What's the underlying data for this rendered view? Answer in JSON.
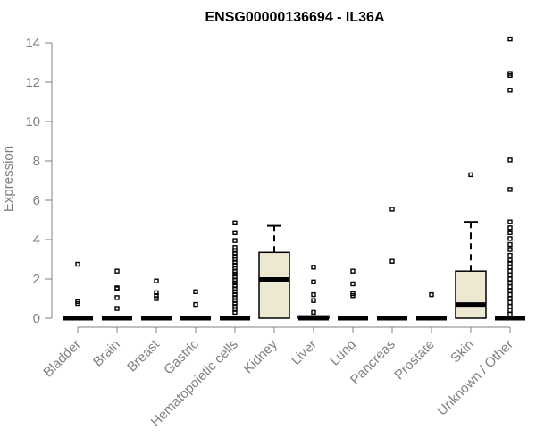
{
  "chart_data": {
    "type": "boxplot",
    "title": "ENSG00000136694 - IL36A",
    "xlabel": "",
    "ylabel": "Expression",
    "ylim": [
      0,
      14.4
    ],
    "yticks": [
      0,
      2,
      4,
      6,
      8,
      10,
      12,
      14
    ],
    "ytick_labels": [
      "0",
      "2",
      "4",
      "6",
      "8",
      "10",
      "12",
      "14"
    ],
    "grid": false,
    "box_fill": "#ede8d1",
    "box_stroke": "#000000",
    "categories": [
      "Bladder",
      "Brain",
      "Breast",
      "Gastric",
      "Hematopoietic cells",
      "Kidney",
      "Liver",
      "Lung",
      "Pancreas",
      "Prostate",
      "Skin",
      "Unknown / Other"
    ],
    "boxes": [
      {
        "q1": 0,
        "median": 0,
        "q3": 0,
        "whisker_low": 0,
        "whisker_high": 0,
        "outliers": [
          2.75,
          0.85,
          0.75
        ]
      },
      {
        "q1": 0,
        "median": 0,
        "q3": 0,
        "whisker_low": 0,
        "whisker_high": 0,
        "outliers": [
          2.4,
          1.55,
          1.5,
          1.05,
          0.5
        ]
      },
      {
        "q1": 0,
        "median": 0,
        "q3": 0,
        "whisker_low": 0,
        "whisker_high": 0,
        "outliers": [
          1.9,
          1.3,
          1.15,
          1.0
        ]
      },
      {
        "q1": 0,
        "median": 0,
        "q3": 0,
        "whisker_low": 0,
        "whisker_high": 0,
        "outliers": [
          1.35,
          0.7
        ]
      },
      {
        "q1": 0,
        "median": 0,
        "q3": 0,
        "whisker_low": 0,
        "whisker_high": 0,
        "outliers": [
          4.85,
          4.35,
          3.95,
          3.6,
          3.45,
          3.3,
          3.15,
          3.0,
          2.85,
          2.7,
          2.55,
          2.4,
          2.25,
          2.1,
          1.95,
          1.8,
          1.65,
          1.5,
          1.35,
          1.2,
          1.05,
          0.9,
          0.75,
          0.6,
          0.45,
          0.3
        ]
      },
      {
        "q1": 0,
        "median": 1.98,
        "q3": 3.35,
        "whisker_low": 0,
        "whisker_high": 4.7,
        "outliers": []
      },
      {
        "q1": 0,
        "median": 0,
        "q3": 0.12,
        "whisker_low": 0,
        "whisker_high": 0.12,
        "outliers": [
          2.6,
          1.85,
          1.2,
          0.9,
          0.3
        ]
      },
      {
        "q1": 0,
        "median": 0,
        "q3": 0,
        "whisker_low": 0,
        "whisker_high": 0,
        "outliers": [
          2.4,
          1.75,
          1.25,
          1.15
        ]
      },
      {
        "q1": 0,
        "median": 0,
        "q3": 0,
        "whisker_low": 0,
        "whisker_high": 0,
        "outliers": [
          5.55,
          2.9
        ]
      },
      {
        "q1": 0,
        "median": 0,
        "q3": 0,
        "whisker_low": 0,
        "whisker_high": 0,
        "outliers": [
          1.2
        ]
      },
      {
        "q1": 0,
        "median": 0.7,
        "q3": 2.4,
        "whisker_low": 0,
        "whisker_high": 4.9,
        "outliers": [
          7.3
        ]
      },
      {
        "q1": 0,
        "median": 0,
        "q3": 0,
        "whisker_low": 0,
        "whisker_high": 0,
        "outliers": [
          14.2,
          12.45,
          12.35,
          11.6,
          8.05,
          6.55,
          4.9,
          4.6,
          4.35,
          4.05,
          3.75,
          3.5,
          3.2,
          2.95,
          2.8,
          2.6,
          2.4,
          2.2,
          2.0,
          1.8,
          1.6,
          1.4,
          1.2,
          1.0,
          0.8,
          0.6,
          0.4,
          0.2
        ]
      }
    ]
  }
}
